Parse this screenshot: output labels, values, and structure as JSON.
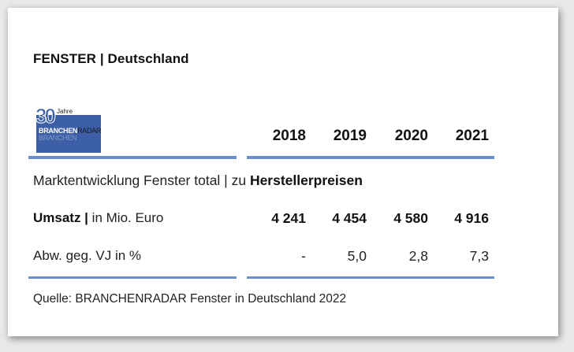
{
  "title": "FENSTER | Deutschland",
  "logo": {
    "number": "30",
    "jahre": "Jahre",
    "brand_bold": "BRANCHEN",
    "brand_rest": "RADAR",
    "ghost": "BRANCHEN"
  },
  "subtitle_prefix": "Marktentwicklung Fenster total | zu ",
  "subtitle_bold": "Herstellerpreisen",
  "colors": {
    "accent_rule": "#6b8fcb",
    "logo_blue": "#3d5fa7"
  },
  "chart_data": {
    "type": "table",
    "columns": [
      "2018",
      "2019",
      "2020",
      "2021"
    ],
    "rows": [
      {
        "label_bold": "Umsatz |",
        "label_rest": " in Mio. Euro",
        "values": [
          "4 241",
          "4 454",
          "4 580",
          "4 916"
        ]
      },
      {
        "label_bold": "",
        "label_rest": "Abw. geg. VJ in %",
        "values": [
          "-",
          "5,0",
          "2,8",
          "7,3"
        ]
      }
    ]
  },
  "source": "Quelle: BRANCHENRADAR Fenster in Deutschland 2022"
}
